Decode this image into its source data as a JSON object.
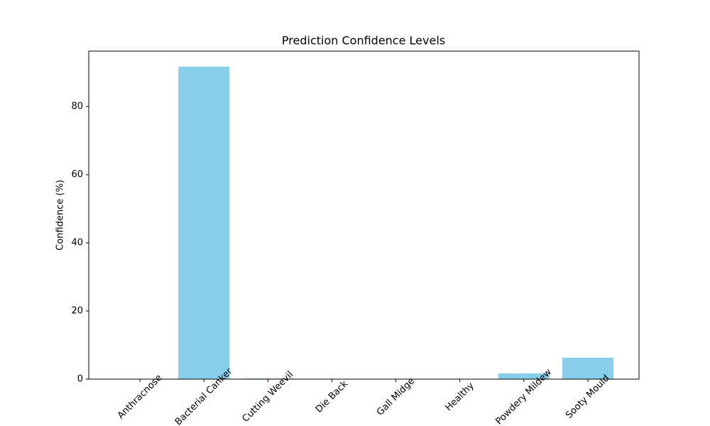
{
  "chart_data": {
    "type": "bar",
    "title": "Prediction Confidence Levels",
    "y_label": "Confidence (%)",
    "categories": [
      "Anthracnose",
      "Bacterial Canker",
      "Cutting Weevil",
      "Die Back",
      "Gall Midge",
      "Healthy",
      "Powdery Mildew",
      "Sooty Mould"
    ],
    "values": [
      0,
      91.7,
      0.2,
      0,
      0,
      0,
      1.7,
      6.3
    ],
    "color": "#87ceeb",
    "ylim": [
      0,
      96.25
    ],
    "yticks": [
      0,
      20,
      40,
      60,
      80
    ],
    "grid": false
  }
}
